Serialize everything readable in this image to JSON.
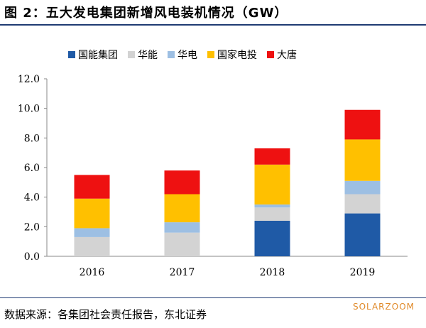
{
  "title": "图 2：五大发电集团新增风电装机情况（GW）",
  "source": "数据来源：各集团社会责任报告，东北证券",
  "watermark": "SOLARZOOM",
  "chart_data": {
    "type": "bar",
    "stacked": true,
    "categories": [
      "2016",
      "2017",
      "2018",
      "2019"
    ],
    "ylim": [
      0,
      12
    ],
    "yticks": [
      "0.0",
      "2.0",
      "4.0",
      "6.0",
      "8.0",
      "10.0",
      "12.0"
    ],
    "grid": false,
    "legend_position": "top",
    "series": [
      {
        "name": "国能集团",
        "color": "#1f5aa6",
        "values": [
          0.0,
          0.0,
          2.4,
          2.9
        ]
      },
      {
        "name": "华能",
        "color": "#d3d3d3",
        "values": [
          1.3,
          1.6,
          0.9,
          1.3
        ]
      },
      {
        "name": "华电",
        "color": "#9dbfe3",
        "values": [
          0.6,
          0.7,
          0.2,
          0.9
        ]
      },
      {
        "name": "国家电投",
        "color": "#ffc000",
        "values": [
          2.0,
          1.9,
          2.7,
          2.8
        ]
      },
      {
        "name": "大唐",
        "color": "#ee1111",
        "values": [
          1.6,
          1.6,
          1.1,
          2.0
        ]
      }
    ]
  }
}
